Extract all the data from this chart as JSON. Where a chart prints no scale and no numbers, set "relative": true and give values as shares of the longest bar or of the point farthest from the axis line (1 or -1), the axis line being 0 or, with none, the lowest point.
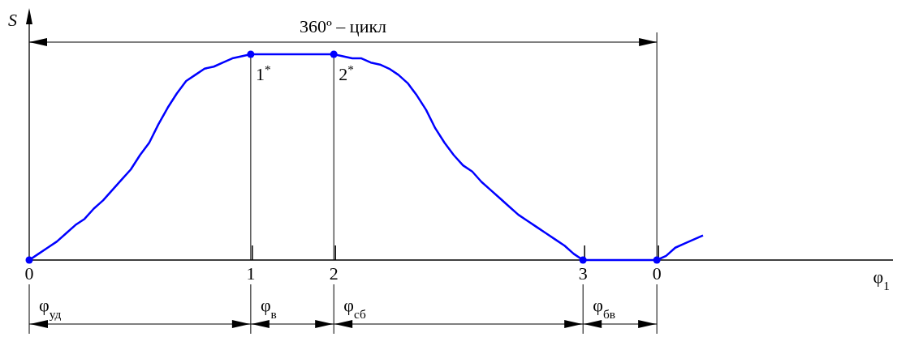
{
  "chart_data": {
    "type": "line",
    "relative": true,
    "grid": "x",
    "ylabel": "S",
    "categories": [
      "0",
      null,
      null,
      null,
      null,
      null,
      null,
      null,
      null,
      null,
      null,
      null,
      null,
      null,
      null,
      null,
      null,
      null,
      null,
      null,
      null,
      null,
      null,
      null,
      "1",
      null,
      null,
      null,
      null,
      null,
      null,
      null,
      null,
      "2",
      null,
      null,
      null,
      null,
      null,
      null,
      null,
      null,
      null,
      null,
      null,
      null,
      null,
      null,
      null,
      null,
      null,
      null,
      null,
      null,
      null,
      null,
      null,
      null,
      null,
      null,
      "3",
      null,
      null,
      null,
      null,
      null,
      null,
      null,
      "0",
      null,
      null,
      null,
      null,
      null
    ],
    "series": [
      {
        "color": "#0000ff",
        "values": [
          0,
          0.03,
          0.06,
          0.09,
          0.13,
          0.17,
          0.2,
          0.25,
          0.29,
          0.34,
          0.39,
          0.44,
          0.51,
          0.57,
          0.66,
          0.74,
          0.81,
          0.87,
          0.9,
          0.93,
          0.94,
          0.96,
          0.98,
          0.99,
          1,
          1,
          1,
          1,
          1,
          1,
          1,
          1,
          1,
          1,
          0.99,
          0.98,
          0.98,
          0.96,
          0.95,
          0.93,
          0.9,
          0.86,
          0.8,
          0.73,
          0.64,
          0.57,
          0.51,
          0.46,
          0.43,
          0.38,
          0.34,
          0.3,
          0.26,
          0.22,
          0.19,
          0.16,
          0.13,
          0.1,
          0.07,
          0.03,
          0,
          0,
          0,
          0,
          0,
          0,
          0,
          0,
          0,
          0.02,
          0.06,
          0.08,
          0.1,
          0.12
        ]
      },
      {
        "type": "scatter",
        "color": "#0000ff",
        "marker": "circle",
        "values": [
          0,
          null,
          null,
          null,
          null,
          null,
          null,
          null,
          null,
          null,
          null,
          null,
          null,
          null,
          null,
          null,
          null,
          null,
          null,
          null,
          null,
          null,
          null,
          null,
          1,
          null,
          null,
          null,
          null,
          null,
          null,
          null,
          null,
          1,
          null,
          null,
          null,
          null,
          null,
          null,
          null,
          null,
          null,
          null,
          null,
          null,
          null,
          null,
          null,
          null,
          null,
          null,
          null,
          null,
          null,
          null,
          null,
          null,
          null,
          null,
          0,
          null,
          null,
          null,
          null,
          null,
          null,
          null,
          0,
          null,
          null,
          null,
          null,
          null
        ]
      }
    ],
    "annotations": [
      "360º – цикл",
      "1$^{*}$",
      "2$^{*}$",
      "φ$_{уд}$",
      "φ$_{в}$",
      "φ$_{сб}$",
      "φ$_{бв}$",
      "φ$_{1}$"
    ]
  }
}
